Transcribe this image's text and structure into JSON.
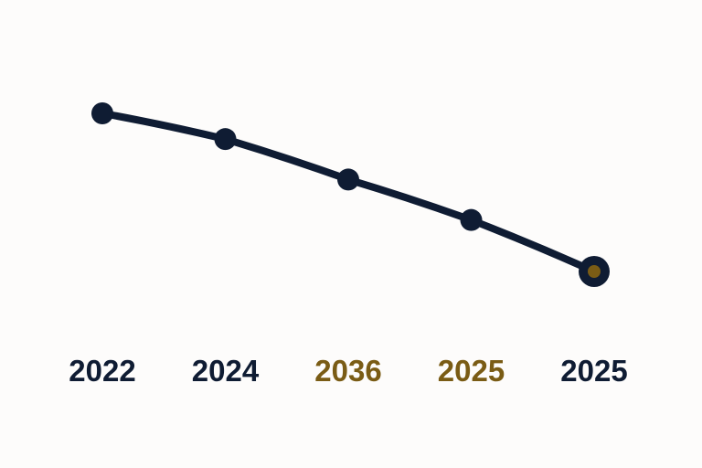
{
  "chart_data": {
    "type": "line",
    "title": "",
    "xlabel": "",
    "ylabel": "",
    "grid": false,
    "categories": [
      "2022",
      "2024",
      "2036",
      "2025",
      "2025"
    ],
    "values": [
      100,
      93,
      82,
      71,
      57
    ],
    "ylim": [
      0,
      130
    ],
    "label_colors": [
      "#0f1c33",
      "#0f1c33",
      "#7a5c15",
      "#7a5c15",
      "#0f1c33"
    ],
    "highlight_index": 4
  },
  "colors": {
    "line": "#0f1c33",
    "marker": "#0f1c33",
    "highlight_fill": "#7a5c15",
    "background": "#fdfcfb"
  }
}
